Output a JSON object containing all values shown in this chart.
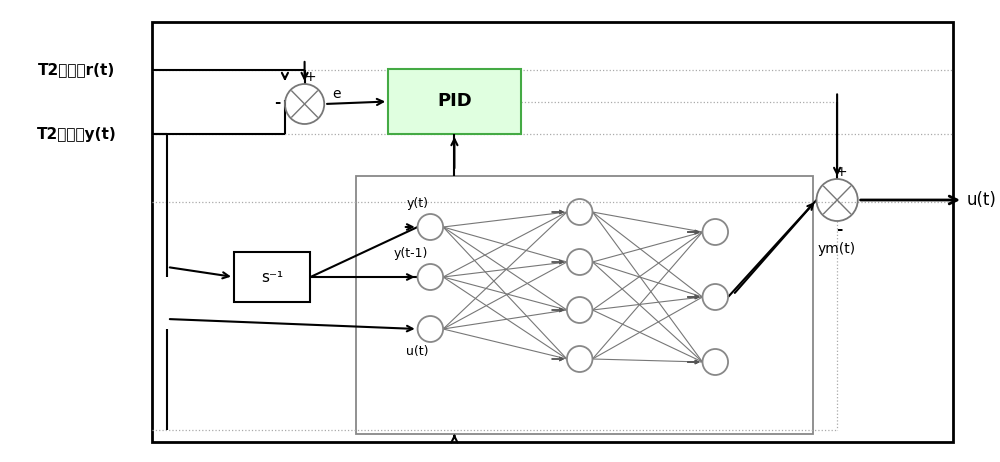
{
  "fig_width": 10.0,
  "fig_height": 4.62,
  "bg_color": "#ffffff",
  "lc": "#000000",
  "glc": "#aaaaaa",
  "label_r": "T2回给定r(t)",
  "label_y": "T2回测量y(t)",
  "label_ut": "u(t)",
  "label_e": "e",
  "label_pid": "PID",
  "label_s_inv": "s⁻¹",
  "label_yt": "y(t)",
  "label_yt1": "y(t-1)",
  "label_utt": "u(t)",
  "label_ym": "ym(t)",
  "pid_fc": "#e0ffe0",
  "pid_ec": "#44aa44",
  "nn_ec": "#888888",
  "node_ec": "#888888",
  "outer_lw": 2.0,
  "inner_lw": 1.3,
  "conn_lw": 0.8,
  "sig_lw": 1.5,
  "gray_lw": 0.9
}
